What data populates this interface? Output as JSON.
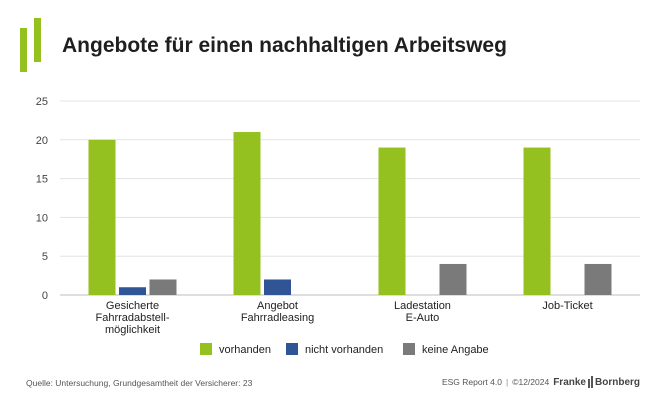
{
  "title": "Angebote für einen nachhaltigen Arbeitsweg",
  "chart_data": {
    "type": "bar",
    "categories": [
      [
        "Gesicherte",
        "Fahrradabstell-",
        "möglichkeit"
      ],
      [
        "Angebot",
        "Fahrradleasing"
      ],
      [
        "Ladestation",
        "E-Auto"
      ],
      [
        "Job-Ticket"
      ]
    ],
    "series": [
      {
        "name": "vorhanden",
        "color": "#94c11f",
        "values": [
          20,
          21,
          19,
          19
        ]
      },
      {
        "name": "nicht vorhanden",
        "color": "#2f5597",
        "values": [
          1,
          2,
          0,
          0
        ]
      },
      {
        "name": "keine Angabe",
        "color": "#7a7a7a",
        "values": [
          2,
          0,
          4,
          4
        ]
      }
    ],
    "ylim": [
      0,
      25
    ],
    "yticks": [
      0,
      5,
      10,
      15,
      20,
      25
    ],
    "grid": true,
    "legend_position": "bottom"
  },
  "footer": {
    "source": "Quelle: Untersuchung, Grundgesamtheit der Versicherer: 23",
    "report": "ESG Report 4.0",
    "separator": "|",
    "copyright": "©12/2024",
    "brand_left": "Franke",
    "brand_right": "Bornberg"
  }
}
